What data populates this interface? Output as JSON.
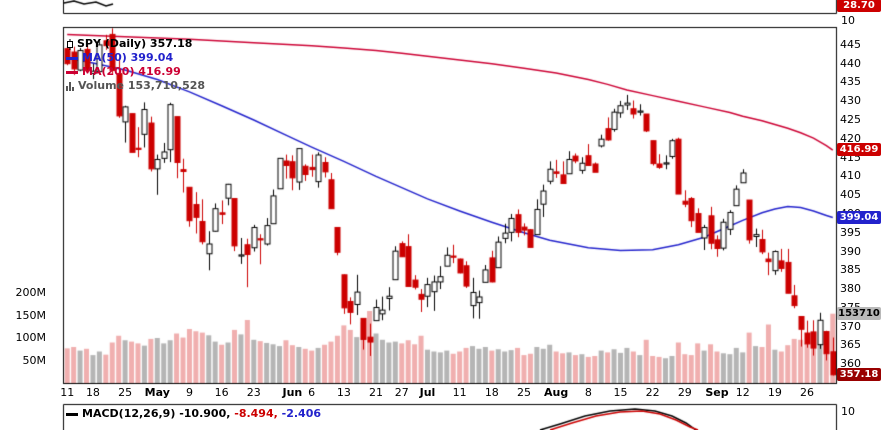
{
  "rsi_pane": {
    "value_tag": "28.70",
    "axis_label": "10"
  },
  "legend": {
    "price_text": "SPY (Daily) 357.18",
    "ma50_text": "MA(50) 399.04",
    "ma200_text": "MA(200) 416.99",
    "volume_text": "Volume 153,710,528"
  },
  "axis_tags": {
    "ma200": "416.99",
    "ma50": "399.04",
    "volume": "153710",
    "close": "357.18"
  },
  "macd_pane": {
    "label": "MACD(12,26,9)",
    "value_macd": "-10.900,",
    "value_signal": "-8.494,",
    "value_hist": "-2.406",
    "axis_label": "10"
  },
  "chart_data": {
    "type": "candlestick",
    "symbol": "SPY",
    "timeframe": "Daily",
    "last_close": 357.18,
    "ma50_last": 399.04,
    "ma200_last": 416.99,
    "volume_last_shares": 153710528,
    "price_axis": {
      "min": 355,
      "max": 449.5,
      "ticks": [
        445,
        440,
        435,
        430,
        425,
        420,
        415,
        410,
        405,
        400,
        395,
        390,
        385,
        380,
        375,
        370,
        365,
        360
      ]
    },
    "volume_axis_ticks": [
      [
        "200M",
        200
      ],
      [
        "150M",
        150
      ],
      [
        "100M",
        100
      ],
      [
        "50M",
        50
      ]
    ],
    "x_ticks": [
      {
        "i": 0,
        "l": "11"
      },
      {
        "i": 4,
        "l": "18"
      },
      {
        "i": 9,
        "l": "25"
      },
      {
        "i": 14,
        "l": "May"
      },
      {
        "i": 19,
        "l": "9"
      },
      {
        "i": 24,
        "l": "16"
      },
      {
        "i": 29,
        "l": "23"
      },
      {
        "i": 35,
        "l": "Jun"
      },
      {
        "i": 38,
        "l": "6"
      },
      {
        "i": 43,
        "l": "13"
      },
      {
        "i": 48,
        "l": "21"
      },
      {
        "i": 52,
        "l": "27"
      },
      {
        "i": 56,
        "l": "Jul"
      },
      {
        "i": 61,
        "l": "11"
      },
      {
        "i": 66,
        "l": "18"
      },
      {
        "i": 71,
        "l": "25"
      },
      {
        "i": 76,
        "l": "Aug"
      },
      {
        "i": 81,
        "l": "8"
      },
      {
        "i": 86,
        "l": "15"
      },
      {
        "i": 91,
        "l": "22"
      },
      {
        "i": 96,
        "l": "29"
      },
      {
        "i": 101,
        "l": "Sep"
      },
      {
        "i": 105,
        "l": "12"
      },
      {
        "i": 110,
        "l": "19"
      },
      {
        "i": 115,
        "l": "26"
      }
    ],
    "candles": [
      [
        444.0,
        444.6,
        439.6,
        440.0,
        77
      ],
      [
        443.1,
        444.5,
        437.0,
        438.6,
        80
      ],
      [
        438.3,
        444.2,
        438.0,
        443.5,
        72
      ],
      [
        443.8,
        445.0,
        437.9,
        438.1,
        76
      ],
      [
        437.4,
        440.0,
        435.9,
        438.0,
        62
      ],
      [
        437.9,
        446.0,
        437.9,
        445.0,
        70
      ],
      [
        446.1,
        447.7,
        443.7,
        444.8,
        63
      ],
      [
        447.8,
        449.4,
        437.3,
        438.2,
        90
      ],
      [
        437.4,
        441.5,
        425.6,
        426.1,
        105
      ],
      [
        424.5,
        428.8,
        419.0,
        428.5,
        95
      ],
      [
        426.7,
        426.7,
        416.4,
        416.4,
        92
      ],
      [
        417.5,
        423.1,
        415.1,
        417.3,
        88
      ],
      [
        421.2,
        429.7,
        417.7,
        427.8,
        83
      ],
      [
        424.2,
        425.9,
        411.3,
        412.0,
        98
      ],
      [
        412.0,
        415.8,
        405.1,
        414.5,
        100
      ],
      [
        414.8,
        418.9,
        413.6,
        416.5,
        88
      ],
      [
        417.1,
        429.6,
        413.8,
        429.1,
        95
      ],
      [
        425.9,
        425.9,
        409.5,
        413.7,
        110
      ],
      [
        411.8,
        414.7,
        405.7,
        411.3,
        101
      ],
      [
        407.1,
        407.1,
        396.6,
        398.2,
        120
      ],
      [
        402.5,
        405.8,
        394.8,
        399.1,
        115
      ],
      [
        398.0,
        403.9,
        391.9,
        392.6,
        112
      ],
      [
        389.4,
        395.4,
        385.0,
        392.0,
        106
      ],
      [
        395.4,
        402.8,
        395.3,
        401.4,
        92
      ],
      [
        400.3,
        403.6,
        397.3,
        399.9,
        85
      ],
      [
        404.2,
        408.0,
        402.3,
        407.9,
        90
      ],
      [
        404.1,
        404.1,
        390.1,
        391.5,
        118
      ],
      [
        388.9,
        393.6,
        386.7,
        389.1,
        108
      ],
      [
        391.8,
        393.4,
        380.5,
        389.2,
        140
      ],
      [
        391.0,
        397.1,
        390.0,
        396.4,
        96
      ],
      [
        393.4,
        394.6,
        386.6,
        393.2,
        93
      ],
      [
        392.0,
        398.9,
        391.6,
        396.9,
        89
      ],
      [
        397.4,
        406.5,
        397.4,
        404.8,
        86
      ],
      [
        406.7,
        414.8,
        406.7,
        414.8,
        82
      ],
      [
        414.1,
        415.8,
        409.4,
        412.9,
        95
      ],
      [
        413.9,
        415.6,
        406.3,
        409.6,
        84
      ],
      [
        408.5,
        417.4,
        406.4,
        417.4,
        80
      ],
      [
        412.7,
        413.2,
        408.8,
        410.5,
        76
      ],
      [
        412.4,
        415.8,
        409.9,
        411.8,
        72
      ],
      [
        408.6,
        416.4,
        407.0,
        415.7,
        78
      ],
      [
        413.7,
        415.1,
        409.7,
        411.2,
        85
      ],
      [
        409.1,
        410.9,
        401.4,
        401.4,
        92
      ],
      [
        396.4,
        396.4,
        389.0,
        389.8,
        105
      ],
      [
        383.8,
        383.9,
        373.4,
        375.0,
        128
      ],
      [
        376.7,
        377.8,
        370.6,
        373.8,
        118
      ],
      [
        375.9,
        383.8,
        373.1,
        379.2,
        102
      ],
      [
        372.2,
        372.2,
        363.9,
        366.6,
        135
      ],
      [
        367.2,
        370.8,
        362.2,
        365.9,
        160
      ],
      [
        371.6,
        377.2,
        371.6,
        375.1,
        110
      ],
      [
        373.4,
        378.0,
        371.7,
        374.4,
        96
      ],
      [
        377.5,
        380.5,
        374.3,
        378.1,
        90
      ],
      [
        382.5,
        391.4,
        382.5,
        390.1,
        92
      ],
      [
        392.1,
        392.7,
        388.6,
        388.6,
        88
      ],
      [
        391.3,
        394.6,
        380.7,
        380.7,
        95
      ],
      [
        382.4,
        383.7,
        379.9,
        380.5,
        86
      ],
      [
        378.6,
        380.0,
        373.9,
        377.3,
        105
      ],
      [
        378.1,
        383.0,
        375.2,
        381.2,
        74
      ],
      [
        379.3,
        383.6,
        374.2,
        381.9,
        70
      ],
      [
        381.9,
        386.1,
        380.0,
        383.3,
        68
      ],
      [
        386.1,
        391.1,
        386.1,
        389.0,
        72
      ],
      [
        388.8,
        391.8,
        386.9,
        388.7,
        65
      ],
      [
        388.0,
        388.1,
        384.2,
        384.3,
        70
      ],
      [
        386.2,
        387.4,
        380.3,
        380.8,
        78
      ],
      [
        375.6,
        383.0,
        372.2,
        379.1,
        82
      ],
      [
        376.4,
        379.6,
        372.1,
        377.9,
        76
      ],
      [
        381.8,
        386.4,
        381.8,
        385.1,
        80
      ],
      [
        388.3,
        390.2,
        381.8,
        381.9,
        72
      ],
      [
        385.7,
        394.0,
        385.7,
        392.5,
        75
      ],
      [
        393.5,
        397.4,
        392.2,
        394.9,
        70
      ],
      [
        395.1,
        400.0,
        392.7,
        398.8,
        73
      ],
      [
        399.8,
        401.2,
        393.8,
        395.1,
        78
      ],
      [
        396.5,
        397.5,
        394.3,
        395.7,
        62
      ],
      [
        395.8,
        396.0,
        391.1,
        391.1,
        65
      ],
      [
        394.5,
        403.9,
        394.4,
        401.2,
        80
      ],
      [
        402.6,
        407.8,
        399.2,
        406.1,
        76
      ],
      [
        408.7,
        414.0,
        407.9,
        411.9,
        85
      ],
      [
        411.2,
        414.4,
        409.6,
        410.8,
        70
      ],
      [
        410.4,
        414.0,
        408.0,
        408.1,
        66
      ],
      [
        410.7,
        416.7,
        410.7,
        414.5,
        68
      ],
      [
        415.4,
        416.1,
        413.5,
        414.1,
        62
      ],
      [
        411.6,
        415.1,
        410.7,
        413.5,
        64
      ],
      [
        415.5,
        418.6,
        412.8,
        412.9,
        58
      ],
      [
        413.3,
        413.7,
        411.2,
        411.1,
        60
      ],
      [
        418.1,
        421.1,
        417.7,
        419.9,
        72
      ],
      [
        422.7,
        425.7,
        419.5,
        419.7,
        68
      ],
      [
        422.5,
        428.0,
        421.9,
        427.1,
        75
      ],
      [
        426.9,
        430.1,
        425.6,
        428.8,
        67
      ],
      [
        429.0,
        431.7,
        427.7,
        429.5,
        78
      ],
      [
        428.0,
        430.2,
        425.4,
        426.6,
        70
      ],
      [
        427.3,
        429.2,
        426.2,
        427.4,
        62
      ],
      [
        426.6,
        426.6,
        421.8,
        422.1,
        96
      ],
      [
        419.5,
        419.5,
        412.9,
        413.4,
        60
      ],
      [
        413.3,
        415.9,
        412.0,
        412.4,
        58
      ],
      [
        413.3,
        415.6,
        411.9,
        413.6,
        55
      ],
      [
        415.3,
        420.0,
        414.7,
        419.5,
        60
      ],
      [
        419.9,
        420.3,
        405.3,
        405.3,
        90
      ],
      [
        403.4,
        406.3,
        401.8,
        402.6,
        64
      ],
      [
        404.1,
        404.5,
        396.5,
        398.2,
        62
      ],
      [
        400.1,
        401.5,
        395.4,
        395.1,
        88
      ],
      [
        393.6,
        397.1,
        390.4,
        396.4,
        72
      ],
      [
        399.5,
        401.9,
        390.6,
        392.2,
        86
      ],
      [
        393.1,
        394.3,
        388.6,
        390.8,
        70
      ],
      [
        390.9,
        398.7,
        390.3,
        397.8,
        66
      ],
      [
        395.9,
        401.0,
        394.4,
        400.4,
        64
      ],
      [
        402.2,
        407.6,
        402.2,
        406.6,
        78
      ],
      [
        408.3,
        411.9,
        408.3,
        410.9,
        68
      ],
      [
        403.7,
        403.7,
        392.1,
        393.1,
        112
      ],
      [
        394.0,
        396.1,
        391.2,
        394.5,
        82
      ],
      [
        393.2,
        395.8,
        389.3,
        389.9,
        80
      ],
      [
        388.0,
        389.7,
        383.7,
        387.3,
        130
      ],
      [
        384.9,
        390.3,
        383.8,
        390.0,
        74
      ],
      [
        387.5,
        390.7,
        384.6,
        385.5,
        70
      ],
      [
        387.1,
        390.7,
        378.9,
        378.9,
        84
      ],
      [
        378.2,
        381.1,
        374.9,
        375.6,
        98
      ],
      [
        372.7,
        372.7,
        364.7,
        369.3,
        96
      ],
      [
        368.3,
        371.6,
        364.4,
        365.4,
        88
      ],
      [
        368.6,
        371.7,
        362.3,
        364.3,
        92
      ],
      [
        365.2,
        373.7,
        364.1,
        371.7,
        85
      ],
      [
        368.7,
        368.9,
        361.0,
        362.8,
        105
      ],
      [
        363.3,
        367.1,
        357.0,
        357.18,
        154
      ]
    ],
    "ma50_points": [
      [
        0,
        441.5
      ],
      [
        4,
        440.2
      ],
      [
        9,
        438.3
      ],
      [
        14,
        435.8
      ],
      [
        19,
        432.5
      ],
      [
        24,
        428.8
      ],
      [
        29,
        425.0
      ],
      [
        34,
        421.0
      ],
      [
        38,
        417.8
      ],
      [
        43,
        414.0
      ],
      [
        48,
        410.0
      ],
      [
        52,
        407.0
      ],
      [
        56,
        404.0
      ],
      [
        61,
        400.8
      ],
      [
        66,
        397.8
      ],
      [
        71,
        395.0
      ],
      [
        75,
        393.0
      ],
      [
        81,
        391.0
      ],
      [
        86,
        390.3
      ],
      [
        91,
        390.5
      ],
      [
        95,
        391.8
      ],
      [
        99,
        393.8
      ],
      [
        103,
        396.8
      ],
      [
        105,
        398.3
      ],
      [
        108,
        400.3
      ],
      [
        110,
        401.3
      ],
      [
        112,
        402.0
      ],
      [
        114,
        401.7
      ],
      [
        116,
        400.8
      ],
      [
        118,
        399.6
      ],
      [
        119,
        399.04
      ]
    ],
    "ma200_points": [
      [
        0,
        447.8
      ],
      [
        9,
        447.2
      ],
      [
        19,
        446.5
      ],
      [
        29,
        445.6
      ],
      [
        38,
        444.8
      ],
      [
        43,
        444.2
      ],
      [
        48,
        443.5
      ],
      [
        52,
        442.8
      ],
      [
        56,
        442.0
      ],
      [
        61,
        441.0
      ],
      [
        66,
        440.0
      ],
      [
        71,
        438.8
      ],
      [
        76,
        437.5
      ],
      [
        81,
        435.8
      ],
      [
        84,
        434.5
      ],
      [
        87,
        433.0
      ],
      [
        91,
        431.5
      ],
      [
        95,
        430.0
      ],
      [
        99,
        428.5
      ],
      [
        103,
        427.0
      ],
      [
        105,
        426.0
      ],
      [
        108,
        424.8
      ],
      [
        110,
        423.8
      ],
      [
        112,
        422.8
      ],
      [
        114,
        421.6
      ],
      [
        116,
        420.2
      ],
      [
        118,
        418.2
      ],
      [
        119,
        416.99
      ]
    ],
    "colors": {
      "up": "#000000",
      "down": "#cc0000",
      "ma50": "#2222cc",
      "ma200": "#cc0033",
      "vol_up": "#b5b5b5",
      "vol_down": "#f0afaf",
      "tag_red": "#cc0000",
      "tag_blue": "#2222cc",
      "tag_gray": "#b9b9b9",
      "tag_close": "#990000"
    },
    "overlays": {
      "rsi_fragment": [
        [
          64,
          3
        ],
        [
          74,
          1
        ],
        [
          84,
          4
        ],
        [
          96,
          2
        ],
        [
          106,
          6
        ],
        [
          113,
          4
        ]
      ],
      "macd_black": [
        [
          540,
          430
        ],
        [
          560,
          424
        ],
        [
          585,
          416
        ],
        [
          610,
          411
        ],
        [
          635,
          409
        ],
        [
          655,
          411
        ],
        [
          672,
          416
        ],
        [
          686,
          423
        ],
        [
          696,
          430
        ]
      ],
      "macd_red": [
        [
          550,
          430
        ],
        [
          572,
          423
        ],
        [
          596,
          416
        ],
        [
          620,
          412
        ],
        [
          642,
          411
        ],
        [
          660,
          414
        ],
        [
          676,
          420
        ],
        [
          690,
          427
        ],
        [
          698,
          430
        ]
      ]
    }
  }
}
